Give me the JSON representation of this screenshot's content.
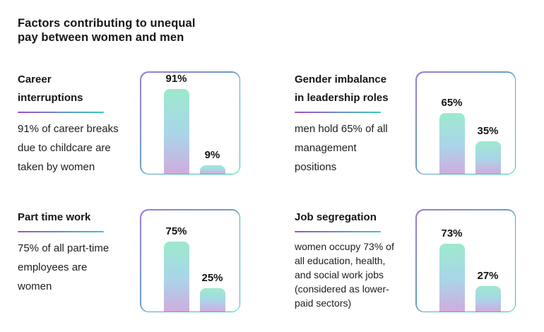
{
  "title_lines": [
    "Factors contributing to unequal",
    "pay between women and men"
  ],
  "colors": {
    "text": "#161616",
    "underline_gradient": [
      "#A14ECF",
      "#36CBC2"
    ],
    "card_border_gradient": [
      "#9F7BD7",
      "#2BC8AE"
    ],
    "bar_gradient": [
      "#9DE9CD",
      "#A9D6E9",
      "#CFACDF"
    ]
  },
  "panels": [
    {
      "heading_lines": [
        "Career",
        "interruptions"
      ],
      "body_lines": [
        "91% of career breaks",
        "due to childcare are",
        "taken by women"
      ]
    },
    {
      "heading_lines": [
        "Gender imbalance",
        "in leadership roles"
      ],
      "body_lines": [
        "men hold 65% of all",
        "management",
        "positions"
      ]
    },
    {
      "heading_lines": [
        "Part time work"
      ],
      "body_lines": [
        "75% of all part-time",
        "employees are",
        "women"
      ]
    },
    {
      "heading_lines": [
        "Job segregation"
      ],
      "body_lines": [
        "women occupy 73% of",
        "all education, health,",
        "and social work jobs",
        "(considered as lower-",
        "paid sectors)"
      ]
    }
  ],
  "chart_data": [
    {
      "type": "bar",
      "title": "Career interruptions",
      "values": [
        91,
        9
      ],
      "labels": [
        "91%",
        "9%"
      ],
      "ylim": [
        0,
        100
      ],
      "grid": false,
      "legend": false
    },
    {
      "type": "bar",
      "title": "Gender imbalance in leadership roles",
      "values": [
        65,
        35
      ],
      "labels": [
        "65%",
        "35%"
      ],
      "ylim": [
        0,
        100
      ],
      "grid": false,
      "legend": false
    },
    {
      "type": "bar",
      "title": "Part time work",
      "values": [
        75,
        25
      ],
      "labels": [
        "75%",
        "25%"
      ],
      "ylim": [
        0,
        100
      ],
      "grid": false,
      "legend": false
    },
    {
      "type": "bar",
      "title": "Job segregation",
      "values": [
        73,
        27
      ],
      "labels": [
        "73%",
        "27%"
      ],
      "ylim": [
        0,
        100
      ],
      "grid": false,
      "legend": false
    }
  ]
}
